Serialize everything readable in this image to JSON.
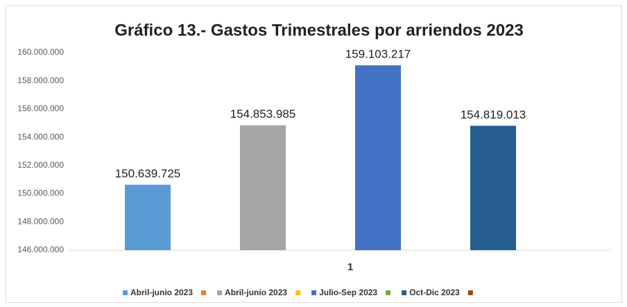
{
  "chart_data": {
    "type": "bar",
    "title": "Gráfico 13.- Gastos Trimestrales por arriendos 2023",
    "categories": [
      "1"
    ],
    "series": [
      {
        "name": "Abril-junio 2023",
        "color": "#5b9bd5",
        "values": [
          150639725
        ],
        "value_labels": [
          "150.639.725"
        ]
      },
      {
        "name": null,
        "color": "#ed7d31",
        "values": [
          null
        ]
      },
      {
        "name": "Abril-junio 2023",
        "color": "#a5a5a5",
        "values": [
          154853985
        ],
        "value_labels": [
          "154.853.985"
        ]
      },
      {
        "name": null,
        "color": "#ffc000",
        "values": [
          null
        ]
      },
      {
        "name": "Julio-Sep 2023",
        "color": "#4472c4",
        "values": [
          159103217
        ],
        "value_labels": [
          "159.103.217"
        ]
      },
      {
        "name": null,
        "color": "#70ad47",
        "values": [
          null
        ]
      },
      {
        "name": "Oct-Dic 2023",
        "color": "#255e91",
        "values": [
          154819013
        ],
        "value_labels": [
          "154.819.013"
        ]
      },
      {
        "name": null,
        "color": "#9e480e",
        "values": [
          null
        ]
      }
    ],
    "ylim": [
      146000000,
      160000000
    ],
    "yticks": [
      {
        "value": 146000000,
        "label": "146.000.000"
      },
      {
        "value": 148000000,
        "label": "148.000.000"
      },
      {
        "value": 150000000,
        "label": "150.000.000"
      },
      {
        "value": 152000000,
        "label": "152.000.000"
      },
      {
        "value": 154000000,
        "label": "154.000.000"
      },
      {
        "value": 156000000,
        "label": "156.000.000"
      },
      {
        "value": 158000000,
        "label": "158.000.000"
      },
      {
        "value": 160000000,
        "label": "160.000.000"
      }
    ],
    "grid": false,
    "legend": "bottom"
  }
}
